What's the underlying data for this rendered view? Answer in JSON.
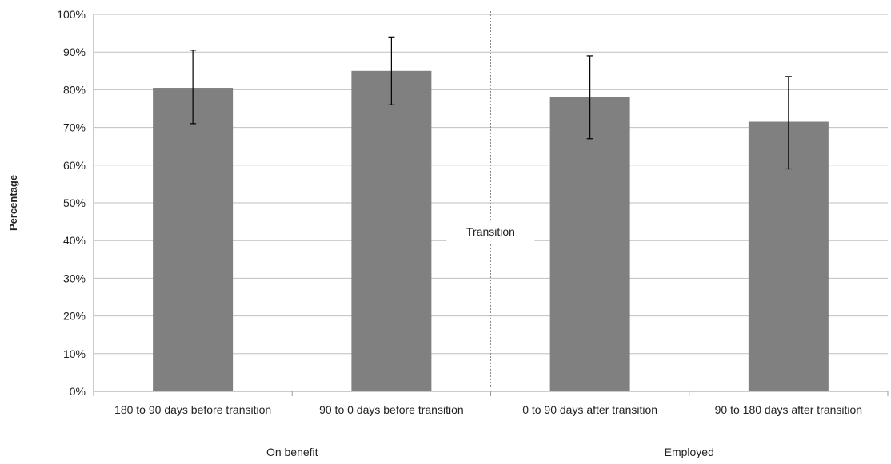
{
  "chart_data": {
    "type": "bar",
    "title": "",
    "ylabel": "Percentage",
    "xlabel": "",
    "ylim": [
      0,
      100
    ],
    "ytick_step": 10,
    "ytick_labels": [
      "0%",
      "10%",
      "20%",
      "30%",
      "40%",
      "50%",
      "60%",
      "70%",
      "80%",
      "90%",
      "100%"
    ],
    "categories": [
      "180 to 90 days before transition",
      "90 to 0 days before transition",
      "0 to 90 days after transition",
      "90 to 180 days after transition"
    ],
    "values": [
      80.5,
      85,
      78,
      71.5
    ],
    "error_low": [
      71,
      76,
      67,
      59
    ],
    "error_high": [
      90.5,
      94,
      89,
      83.5
    ],
    "groups": [
      {
        "label": "On benefit",
        "categories": [
          0,
          1
        ]
      },
      {
        "label": "Employed",
        "categories": [
          2,
          3
        ]
      }
    ],
    "annotation": "Transition",
    "grid": true,
    "legend": "none",
    "colors": {
      "bar": "#808080",
      "grid": "#bfbfbf",
      "axis": "#9a9a9a",
      "divider": "#8a8a8a",
      "error": "#000000"
    }
  }
}
